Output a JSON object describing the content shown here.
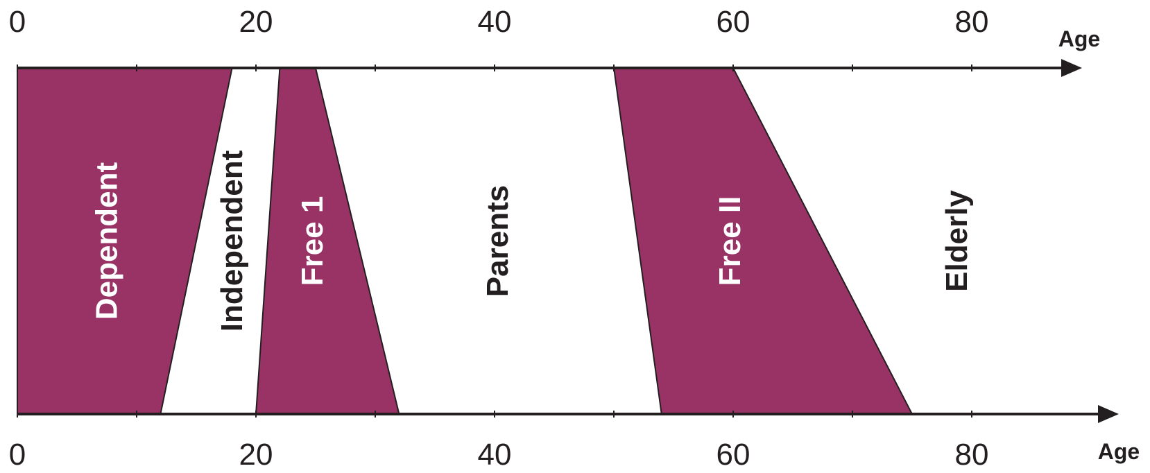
{
  "colors": {
    "accent": "#993366",
    "ink": "#231f20",
    "background": "#ffffff",
    "label_on_accent": "#ffffff",
    "label_on_white": "#231f20"
  },
  "top_axis": {
    "title": "Age",
    "ticks": [
      "0",
      "20",
      "40",
      "60",
      "80"
    ]
  },
  "bottom_axis": {
    "title": "Age",
    "ticks": [
      "0",
      "20",
      "40",
      "60",
      "80"
    ]
  },
  "phases": [
    {
      "label": "Dependent",
      "top_ages": [
        0,
        18
      ],
      "bottom_ages": [
        0,
        12
      ],
      "filled": true
    },
    {
      "label": "Independent",
      "top_ages": [
        18,
        22
      ],
      "bottom_ages": [
        12,
        20
      ],
      "filled": false
    },
    {
      "label": "Free 1",
      "top_ages": [
        22,
        25
      ],
      "bottom_ages": [
        20,
        32
      ],
      "filled": true
    },
    {
      "label": "Parents",
      "top_ages": [
        25,
        50
      ],
      "bottom_ages": [
        32,
        54
      ],
      "filled": false
    },
    {
      "label": "Free II",
      "top_ages": [
        50,
        60
      ],
      "bottom_ages": [
        54,
        75
      ],
      "filled": true
    },
    {
      "label": "Elderly",
      "top_ages": [
        60,
        90
      ],
      "bottom_ages": [
        75,
        90
      ],
      "filled": false
    }
  ]
}
